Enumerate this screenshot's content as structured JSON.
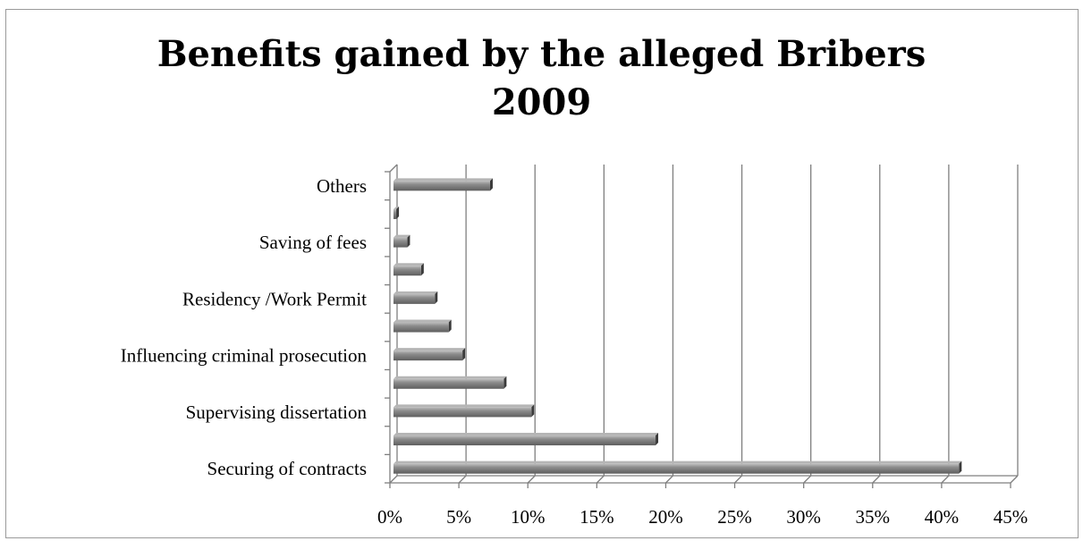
{
  "chart_data": {
    "type": "bar",
    "orientation": "horizontal",
    "title": "Benefits gained by the alleged Bribers 2009",
    "title_lines": [
      "Benefits gained by the alleged Bribers",
      "2009"
    ],
    "categories": [
      "Securing of  contracts",
      "",
      "Supervising dissertation",
      "",
      "Influencing criminal prosecution",
      "",
      "Residency /Work Permit",
      "",
      "Saving of fees",
      "",
      "Others"
    ],
    "values": [
      41.0,
      19.0,
      10.0,
      8.0,
      5.0,
      4.0,
      3.0,
      2.0,
      1.0,
      0.2,
      7.0
    ],
    "xlim": [
      0,
      45
    ],
    "x_ticks": [
      "0%",
      "5%",
      "10%",
      "15%",
      "20%",
      "25%",
      "30%",
      "35%",
      "40%",
      "45%"
    ],
    "grid": true,
    "bar_color": "#8c8c8c",
    "xlabel": "",
    "ylabel": ""
  }
}
